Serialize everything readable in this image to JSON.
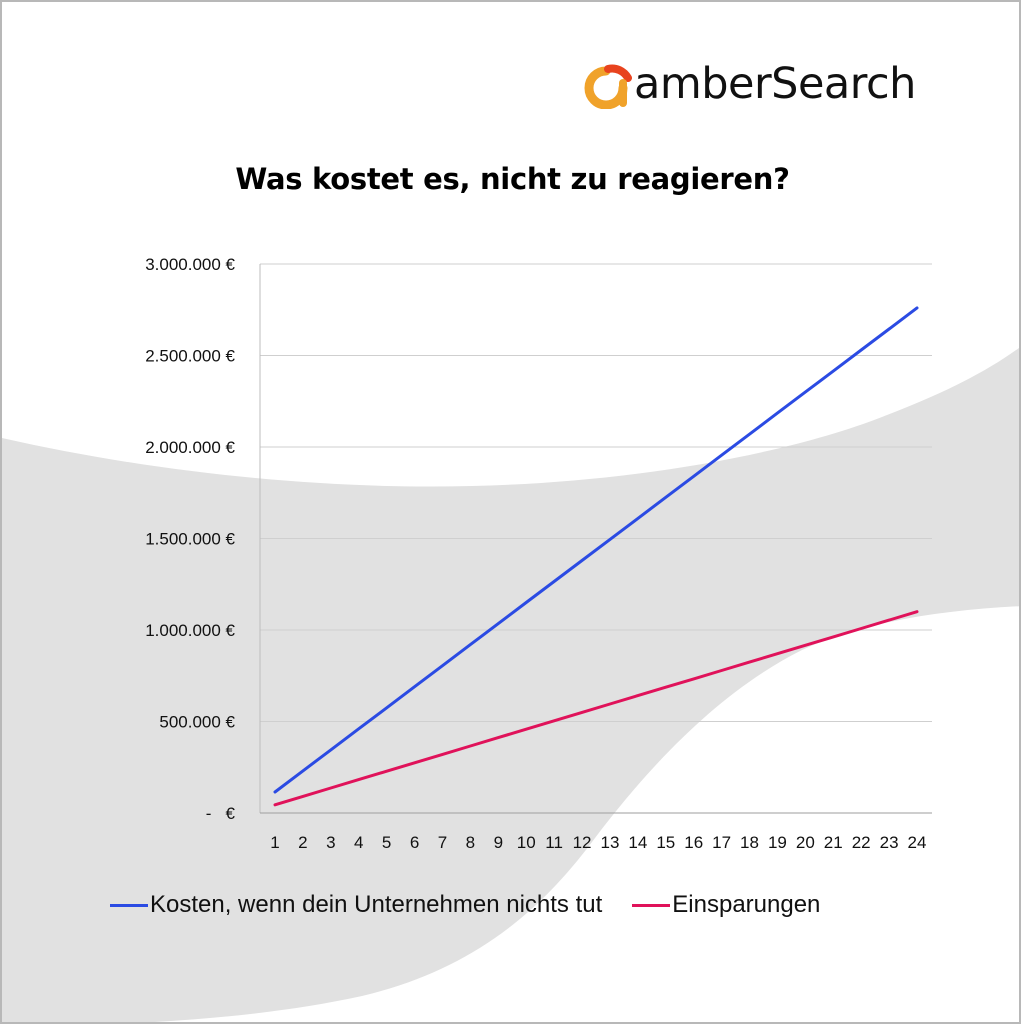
{
  "brand": {
    "name": "amberSearch",
    "logo_colors": {
      "orange": "#F0A22A",
      "red": "#E8431E"
    }
  },
  "colors": {
    "cost_line": "#2B4BE3",
    "savings_line": "#E0125A",
    "background_wave": "#E1E1E1",
    "gridline": "#CFCFCF"
  },
  "chart_data": {
    "type": "line",
    "title": "Was kostet es, nicht zu reagieren?",
    "xlabel": "",
    "ylabel": "",
    "categories": [
      "1",
      "2",
      "3",
      "4",
      "5",
      "6",
      "7",
      "8",
      "9",
      "10",
      "11",
      "12",
      "13",
      "14",
      "15",
      "16",
      "17",
      "18",
      "19",
      "20",
      "21",
      "22",
      "23",
      "24"
    ],
    "series": [
      {
        "name": "Kosten, wenn dein Unternehmen nichts tut",
        "color": "#2B4BE3",
        "start": 115000,
        "end": 2760000
      },
      {
        "name": "Einsparungen",
        "color": "#E0125A",
        "start": 45000,
        "end": 1100000
      }
    ],
    "ylim": [
      0,
      3000000
    ],
    "y_ticks": [
      0,
      500000,
      1000000,
      1500000,
      2000000,
      2500000,
      3000000
    ],
    "y_tick_labels": [
      "-   €",
      "500.000 €",
      "1.000.000 €",
      "1.500.000 €",
      "2.000.000 €",
      "2.500.000 €",
      "3.000.000 €"
    ],
    "grid": true,
    "legend_position": "bottom"
  }
}
